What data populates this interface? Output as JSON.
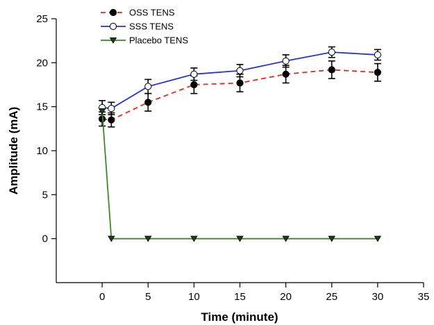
{
  "chart_data": {
    "type": "line",
    "xlabel": "Time (minute)",
    "ylabel": "Amplitude (mA)",
    "xlim": [
      -5,
      35
    ],
    "ylim": [
      -5,
      25
    ],
    "xticks": [
      0,
      5,
      10,
      15,
      20,
      25,
      30,
      35
    ],
    "yticks": [
      0,
      5,
      10,
      15,
      20,
      25
    ],
    "grid": false,
    "legend_position": "top-left",
    "series": [
      {
        "name": "OSS TENS",
        "color": "#e8261f",
        "line_style": "dashed",
        "marker": "filled-circle",
        "x": [
          0,
          1,
          5,
          10,
          15,
          20,
          25,
          30
        ],
        "y": [
          13.6,
          13.5,
          15.5,
          17.5,
          17.7,
          18.7,
          19.2,
          18.9
        ],
        "error": [
          0.8,
          0.8,
          1.0,
          1.0,
          1.0,
          1.0,
          1.0,
          1.0
        ]
      },
      {
        "name": "SSS TENS",
        "color": "#2233dd",
        "line_style": "solid",
        "marker": "open-circle",
        "x": [
          0,
          1,
          5,
          10,
          15,
          20,
          25,
          30
        ],
        "y": [
          14.9,
          14.8,
          17.3,
          18.7,
          19.1,
          20.2,
          21.2,
          20.9
        ],
        "error": [
          0.8,
          0.7,
          0.8,
          0.7,
          0.7,
          0.7,
          0.6,
          0.6
        ]
      },
      {
        "name": "Placebo TENS",
        "color": "#3a8a2a",
        "line_style": "solid",
        "marker": "filled-triangle-down",
        "x": [
          0,
          1,
          5,
          10,
          15,
          20,
          25,
          30
        ],
        "y": [
          14.5,
          0,
          0,
          0,
          0,
          0,
          0,
          0
        ],
        "error": [
          0,
          0,
          0,
          0,
          0,
          0,
          0,
          0
        ]
      }
    ]
  }
}
